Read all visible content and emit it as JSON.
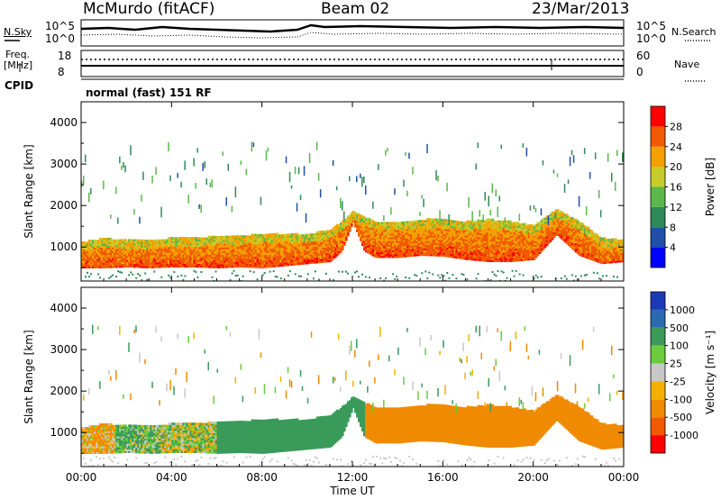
{
  "header": {
    "station": "McMurdo (fitACF)",
    "beam": "Beam 02",
    "date": "23/Mar/2013"
  },
  "status_panel": {
    "left_label": "N.Sky",
    "right_label": "N.Search",
    "left_ticks": [
      "10^5",
      "10^0"
    ],
    "right_ticks": [
      "10^5",
      "10^0"
    ]
  },
  "freq_panel": {
    "left_label_top": "Freq.",
    "left_label_bottom": "[MHz]",
    "left_ticks": [
      "18",
      "8"
    ],
    "right_label": "Nave",
    "right_ticks": [
      "60",
      "0"
    ]
  },
  "cpid": {
    "label": "CPID",
    "value": "normal (fast) 151 RF"
  },
  "colors": {
    "background": "#ffffff",
    "text": "#000000"
  },
  "chart_data": [
    {
      "type": "heatmap",
      "title": "",
      "xlabel": "",
      "ylabel": "Slant Range [km]",
      "ylim": [
        180,
        4500
      ],
      "xlim": [
        0,
        24
      ],
      "y_ticks": [
        1000,
        2000,
        3000,
        4000
      ],
      "x_tick_hours": [
        0,
        4,
        8,
        12,
        16,
        20,
        24
      ],
      "x_tick_labels": [
        "",
        "",
        "",
        "",
        "",
        "",
        ""
      ],
      "colorbar": {
        "label": "Power [dB]",
        "levels": [
          0,
          4,
          8,
          12,
          16,
          20,
          24,
          28,
          32
        ],
        "tick_labels": [
          "4",
          "8",
          "12",
          "16",
          "20",
          "24",
          "28"
        ],
        "colors": [
          "#0000ff",
          "#1f4fa8",
          "#2f8a5a",
          "#5ab84a",
          "#c8cc2a",
          "#f4a000",
          "#f05a00",
          "#ff0000"
        ]
      },
      "scatter_echo_band": {
        "times": [
          0,
          1,
          2,
          3,
          4,
          5,
          6,
          7,
          8,
          9,
          10,
          11,
          11.5,
          12,
          12.5,
          13,
          14,
          15,
          16,
          17,
          18,
          19,
          20,
          20.5,
          21,
          22,
          23,
          24
        ],
        "lower_km": [
          500,
          500,
          520,
          500,
          520,
          520,
          500,
          520,
          500,
          550,
          600,
          650,
          900,
          1600,
          900,
          750,
          750,
          800,
          780,
          700,
          650,
          650,
          700,
          1000,
          1300,
          800,
          600,
          650
        ],
        "upper_km": [
          1100,
          1200,
          1150,
          1150,
          1200,
          1200,
          1250,
          1250,
          1300,
          1300,
          1300,
          1400,
          1600,
          1850,
          1700,
          1600,
          1600,
          1650,
          1650,
          1600,
          1650,
          1600,
          1500,
          1700,
          1900,
          1600,
          1200,
          1150
        ],
        "value": 28
      },
      "sparse_scatter": {
        "range_km": [
          1700,
          3600
        ],
        "value": 10
      }
    },
    {
      "type": "heatmap",
      "title": "",
      "xlabel": "Time UT",
      "ylabel": "Slant Range [km]",
      "ylim": [
        180,
        4500
      ],
      "xlim": [
        0,
        24
      ],
      "y_ticks": [
        1000,
        2000,
        3000,
        4000
      ],
      "x_tick_hours": [
        0,
        4,
        8,
        12,
        16,
        20,
        24
      ],
      "x_tick_labels": [
        "00:00",
        "04:00",
        "08:00",
        "12:00",
        "16:00",
        "20:00",
        "00:00"
      ],
      "colorbar": {
        "label": "Velocity [m s⁻¹]",
        "levels": [
          -1500,
          -1000,
          -500,
          -100,
          -25,
          25,
          100,
          500,
          1000,
          1500
        ],
        "tick_labels": [
          "-1000",
          "-500",
          "-100",
          "-25",
          "25",
          "100",
          "500",
          "1000"
        ],
        "colors": [
          "#ff0000",
          "#f05a00",
          "#f08a00",
          "#f4b000",
          "#c8c8c8",
          "#6acc3a",
          "#3a9a5a",
          "#2a6ab0",
          "#1a3ab8"
        ]
      },
      "velocity_segments": [
        {
          "t0": 0,
          "t1": 1.5,
          "velocity": -100
        },
        {
          "t0": 1.5,
          "t1": 3.5,
          "velocity": 100
        },
        {
          "t0": 3.5,
          "t1": 6,
          "velocity": 25
        },
        {
          "t0": 6,
          "t1": 10,
          "velocity": 300
        },
        {
          "t0": 10,
          "t1": 12.5,
          "velocity": 300
        },
        {
          "t0": 12.5,
          "t1": 24,
          "velocity": -300
        }
      ]
    }
  ]
}
